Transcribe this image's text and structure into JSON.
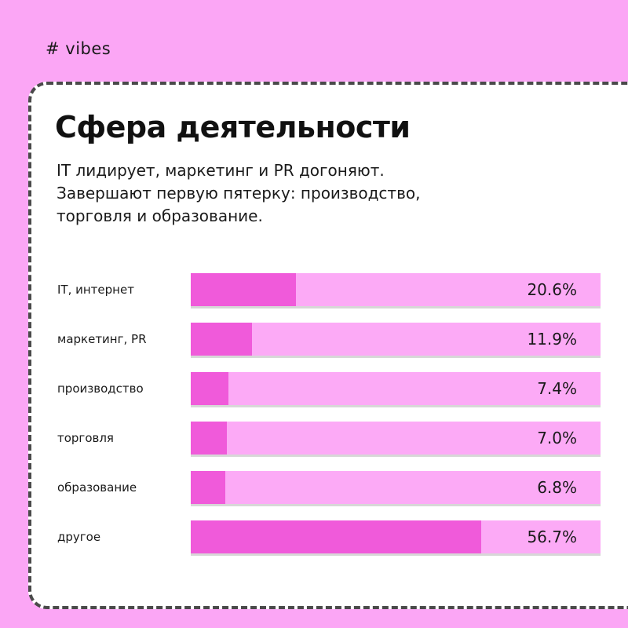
{
  "brand": "# vibes",
  "title": "Сфера деятельности",
  "subtitle_lines": [
    "IT лидирует, маркетинг и PR догоняют.",
    "Завершают первую пятерку: производство,",
    "торговля и образование."
  ],
  "colors": {
    "background": "#fba6f5",
    "card": "#ffffff",
    "track": "#fcaaf6",
    "fill": "#f05ada"
  },
  "chart_data": {
    "type": "bar",
    "orientation": "horizontal",
    "categories": [
      "IT, интернет",
      "маркетинг, PR",
      "производство",
      "торговля",
      "образование",
      "другое"
    ],
    "values": [
      20.6,
      11.9,
      7.4,
      7.0,
      6.8,
      56.7
    ],
    "value_labels": [
      "20.6%",
      "11.9%",
      "7.4%",
      "7.0%",
      "6.8%",
      "56.7%"
    ],
    "xlim": [
      0,
      80
    ]
  }
}
